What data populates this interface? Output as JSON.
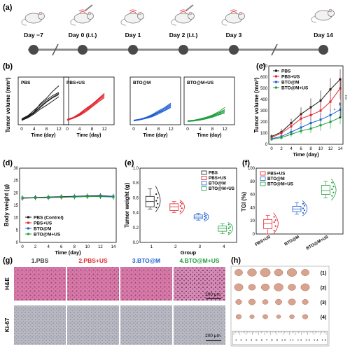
{
  "panels": {
    "a": "(a)",
    "b": "(b)",
    "c": "(c)",
    "d": "(d)",
    "e": "(e)",
    "f": "(f)",
    "g": "(g)",
    "h": "(h)"
  },
  "timeline": {
    "days": [
      "Day −7",
      "Day 0 (i.t.)",
      "Day 1",
      "Day 2 (i.t.)",
      "Day 3",
      "Day 14"
    ],
    "colors": {
      "line": "#8a8a8a",
      "dot": "#4a4a4a"
    }
  },
  "colors": {
    "PBS": "#1a1a1a",
    "PBS+US": "#e0262b",
    "BTO@M": "#1f5fd1",
    "BTO@M+US": "#1e9e3c"
  },
  "chart_data": [
    {
      "panel": "b",
      "type": "line",
      "xlabel": "Time (day)",
      "ylabel": "Tumor volume (mm³)",
      "x_ticks": [
        0,
        4,
        8,
        12
      ],
      "ylim": [
        0,
        700
      ],
      "subplots": [
        {
          "name": "PBS",
          "series": [
            [
              60,
              120,
              200,
              350,
              450,
              580,
              680
            ],
            [
              50,
              100,
              180,
              280,
              380,
              460,
              520
            ],
            [
              70,
              130,
              230,
              330,
              420,
              500,
              560
            ],
            [
              40,
              90,
              160,
              250,
              320,
              400,
              480
            ],
            [
              55,
              110,
              190,
              300,
              390,
              470,
              540
            ]
          ]
        },
        {
          "name": "PBS+US",
          "series": [
            [
              50,
              90,
              150,
              230,
              320,
              420,
              500
            ],
            [
              40,
              80,
              130,
              200,
              290,
              380,
              460
            ],
            [
              60,
              100,
              170,
              260,
              340,
              440,
              540
            ],
            [
              45,
              85,
              140,
              220,
              300,
              400,
              480
            ],
            [
              55,
              95,
              160,
              250,
              330,
              430,
              520
            ]
          ]
        },
        {
          "name": "BTO@M",
          "series": [
            [
              40,
              60,
              90,
              140,
              200,
              260,
              340
            ],
            [
              35,
              55,
              80,
              120,
              180,
              230,
              300
            ],
            [
              45,
              65,
              100,
              150,
              220,
              280,
              360
            ],
            [
              30,
              50,
              75,
              110,
              160,
              220,
              280
            ],
            [
              40,
              60,
              85,
              130,
              190,
              250,
              320
            ]
          ]
        },
        {
          "name": "BTO@M+US",
          "series": [
            [
              30,
              40,
              60,
              90,
              130,
              180,
              240
            ],
            [
              25,
              35,
              50,
              80,
              110,
              150,
              200
            ],
            [
              35,
              45,
              70,
              100,
              140,
              200,
              280
            ],
            [
              20,
              30,
              45,
              70,
              100,
              140,
              180
            ],
            [
              30,
              40,
              55,
              85,
              120,
              170,
              220
            ]
          ]
        }
      ]
    },
    {
      "panel": "c",
      "type": "line",
      "xlabel": "Time (day)",
      "ylabel": "Tumor volume (mm³)",
      "x": [
        0,
        2,
        4,
        6,
        8,
        10,
        12,
        14
      ],
      "x_ticks": [
        0,
        2,
        4,
        6,
        8,
        10,
        12,
        14
      ],
      "y_ticks": [
        0,
        100,
        200,
        300,
        400,
        500,
        600,
        700
      ],
      "ylim": [
        0,
        700
      ],
      "series": [
        {
          "name": "PBS",
          "values": [
            70,
            110,
            190,
            270,
            330,
            390,
            490,
            580
          ],
          "err": [
            20,
            30,
            40,
            60,
            80,
            90,
            100,
            90
          ]
        },
        {
          "name": "PBS+US",
          "values": [
            60,
            100,
            160,
            230,
            260,
            300,
            380,
            500
          ],
          "err": [
            20,
            30,
            40,
            50,
            70,
            80,
            90,
            100
          ]
        },
        {
          "name": "BTO@M",
          "values": [
            50,
            70,
            110,
            150,
            190,
            220,
            260,
            310
          ],
          "err": [
            15,
            20,
            30,
            40,
            50,
            60,
            60,
            60
          ]
        },
        {
          "name": "BTO@M+US",
          "values": [
            45,
            60,
            90,
            120,
            140,
            170,
            200,
            240
          ],
          "err": [
            15,
            20,
            25,
            30,
            40,
            50,
            60,
            60
          ]
        }
      ],
      "annotations": [
        "***",
        "**",
        "*"
      ],
      "legend": "top-left"
    },
    {
      "panel": "d",
      "type": "line",
      "xlabel": "Time (day)",
      "ylabel": "Body weight (g)",
      "x": [
        0,
        2,
        4,
        6,
        8,
        10,
        12,
        14
      ],
      "x_ticks": [
        0,
        2,
        4,
        6,
        8,
        10,
        12,
        14
      ],
      "y_ticks": [
        0,
        5,
        10,
        15,
        20,
        25,
        30
      ],
      "ylim": [
        0,
        30
      ],
      "series": [
        {
          "name": "PBS (Control)",
          "values": [
            18.0,
            18.2,
            18.3,
            18.5,
            18.6,
            18.8,
            18.9,
            18.6
          ],
          "err": [
            1,
            1,
            1,
            1,
            1,
            1,
            1,
            1
          ]
        },
        {
          "name": "PBS+US",
          "values": [
            17.8,
            18.0,
            18.1,
            18.2,
            18.4,
            18.5,
            18.6,
            18.4
          ],
          "err": [
            1,
            1,
            1,
            1,
            1,
            1,
            1,
            1
          ]
        },
        {
          "name": "BTO@M",
          "values": [
            17.9,
            18.1,
            18.0,
            18.3,
            18.5,
            18.6,
            18.7,
            18.5
          ],
          "err": [
            1,
            1,
            1,
            1,
            1,
            1,
            1,
            1
          ]
        },
        {
          "name": "BTO@M+US",
          "values": [
            18.1,
            18.0,
            18.2,
            18.4,
            18.3,
            18.6,
            18.5,
            18.3
          ],
          "err": [
            1,
            1,
            1,
            1,
            1,
            1,
            1,
            1
          ]
        }
      ],
      "legend": "bottom-left"
    },
    {
      "panel": "e",
      "type": "box",
      "xlabel": "Group",
      "ylabel": "Tumor weight (g)",
      "categories": [
        "1",
        "2",
        "3",
        "4"
      ],
      "y_ticks": [
        0.0,
        0.2,
        0.4,
        0.6,
        0.8,
        1.0
      ],
      "ylim": [
        0,
        1.0
      ],
      "series": [
        {
          "name": "PBS",
          "min": 0.45,
          "q1": 0.48,
          "median": 0.55,
          "q3": 0.62,
          "max": 0.72,
          "points": [
            0.47,
            0.52,
            0.56,
            0.6,
            0.65
          ]
        },
        {
          "name": "PBS+US",
          "min": 0.4,
          "q1": 0.43,
          "median": 0.48,
          "q3": 0.52,
          "max": 0.55,
          "points": [
            0.42,
            0.46,
            0.49,
            0.52,
            0.54
          ]
        },
        {
          "name": "BTO@M",
          "min": 0.3,
          "q1": 0.32,
          "median": 0.34,
          "q3": 0.37,
          "max": 0.39,
          "points": [
            0.31,
            0.33,
            0.35,
            0.36,
            0.38
          ]
        },
        {
          "name": "BTO@M+US",
          "min": 0.12,
          "q1": 0.15,
          "median": 0.19,
          "q3": 0.22,
          "max": 0.25,
          "points": [
            0.13,
            0.16,
            0.19,
            0.21,
            0.24
          ]
        }
      ],
      "legend": "top-right"
    },
    {
      "panel": "f",
      "type": "box",
      "xlabel": "",
      "ylabel": "TGI (%)",
      "categories": [
        "PBS+US",
        "BTO@M",
        "BTO@M+US"
      ],
      "y_ticks": [
        0,
        20,
        40,
        60,
        80,
        100
      ],
      "ylim": [
        0,
        100
      ],
      "series": [
        {
          "name": "PBS+US",
          "min": 0,
          "q1": 8,
          "median": 16,
          "q3": 22,
          "max": 28,
          "points": [
            5,
            12,
            18,
            21,
            26
          ]
        },
        {
          "name": "BTO@M",
          "min": 30,
          "q1": 34,
          "median": 38,
          "q3": 42,
          "max": 48,
          "points": [
            32,
            36,
            39,
            43,
            46
          ]
        },
        {
          "name": "BTO@M+US",
          "min": 55,
          "q1": 60,
          "median": 66,
          "q3": 74,
          "max": 80,
          "points": [
            58,
            63,
            68,
            72,
            78
          ]
        }
      ],
      "legend": "top-left"
    }
  ],
  "histology": {
    "titles": [
      "1.PBS",
      "2.PBS+US",
      "3.BTO@M",
      "4.BTO@M+US"
    ],
    "rows": [
      "H&E",
      "Ki-67"
    ],
    "scale_bar": "200 μm"
  },
  "photo": {
    "row_labels": [
      "(1)",
      "(2)",
      "(3)",
      "(4)"
    ],
    "ruler": "1 2 3 4 5 6 7 8 9 10 11 12 13 14 15"
  }
}
